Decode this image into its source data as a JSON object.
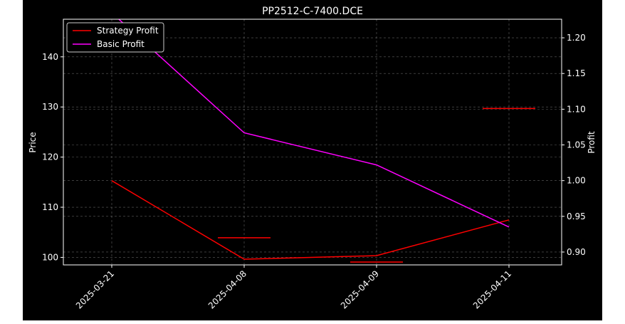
{
  "chart_data": {
    "type": "line",
    "title": "PP2512-C-7400.DCE",
    "xlabel": "",
    "ylabel_left": "Price",
    "ylabel_right": "Profit",
    "categories": [
      "2025-03-21",
      "2025-04-08",
      "2025-04-09",
      "2025-04-11"
    ],
    "left_axis": {
      "ylim": [
        98.5,
        147.5
      ],
      "ticks": [
        100,
        110,
        120,
        130,
        140
      ]
    },
    "right_axis": {
      "ylim": [
        0.882,
        1.226
      ],
      "ticks": [
        "0.90",
        "0.95",
        "1.00",
        "1.05",
        "1.10",
        "1.15",
        "1.20"
      ]
    },
    "grid": true,
    "legend_position": "top-left",
    "series": [
      {
        "name": "Strategy Profit",
        "axis": "right",
        "color": "#ff0000",
        "values": [
          1.0,
          0.89,
          0.895,
          0.945
        ]
      },
      {
        "name": "Basic Profit",
        "axis": "right",
        "color": "#ff00ff",
        "values": [
          1.235,
          1.067,
          1.022,
          0.935
        ]
      }
    ],
    "trade_marks": [
      {
        "category_index": 1,
        "axis": "right",
        "value": 0.92,
        "color": "#ff0000"
      },
      {
        "category_index": 2,
        "axis": "right",
        "value": 0.886,
        "color": "#ff0000"
      },
      {
        "category_index": 3,
        "axis": "right",
        "value": 1.101,
        "color": "#ff0000"
      }
    ]
  }
}
